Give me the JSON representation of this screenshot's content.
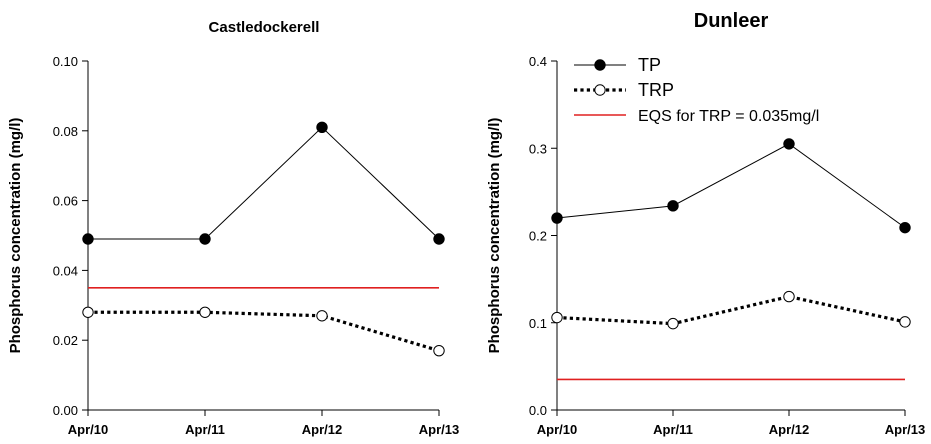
{
  "chart_data": [
    {
      "type": "line",
      "title": "Castledockerell",
      "xlabel": "",
      "ylabel": "Phosphorus concentration (mg/l)",
      "categories": [
        "Apr/10",
        "Apr/11",
        "Apr/12",
        "Apr/13"
      ],
      "ylim": [
        0,
        0.1
      ],
      "yticks": [
        "0.00",
        "0.02",
        "0.04",
        "0.06",
        "0.08",
        "0.10"
      ],
      "series": [
        {
          "name": "TP",
          "style": "solid-filled",
          "color": "#000000",
          "values": [
            0.049,
            0.049,
            0.081,
            0.049
          ]
        },
        {
          "name": "TRP",
          "style": "dotted-open",
          "color": "#000000",
          "values": [
            0.028,
            0.028,
            0.027,
            0.017
          ]
        },
        {
          "name": "EQS for TRP = 0.035mg/l",
          "style": "reference",
          "color": "#e02020",
          "values": [
            0.035,
            0.035,
            0.035,
            0.035
          ]
        }
      ],
      "legend": false,
      "grid": false
    },
    {
      "type": "line",
      "title": "Dunleer",
      "xlabel": "",
      "ylabel": "Phosphorus concentration (mg/l)",
      "categories": [
        "Apr/10",
        "Apr/11",
        "Apr/12",
        "Apr/13"
      ],
      "ylim": [
        0,
        0.4
      ],
      "yticks": [
        "0.0",
        "0.1",
        "0.2",
        "0.3",
        "0.4"
      ],
      "series": [
        {
          "name": "TP",
          "style": "solid-filled",
          "color": "#000000",
          "values": [
            0.22,
            0.234,
            0.305,
            0.209
          ]
        },
        {
          "name": "TRP",
          "style": "dotted-open",
          "color": "#000000",
          "values": [
            0.106,
            0.099,
            0.13,
            0.101
          ]
        },
        {
          "name": "EQS for TRP = 0.035mg/l",
          "style": "reference",
          "color": "#e02020",
          "values": [
            0.035,
            0.035,
            0.035,
            0.035
          ]
        }
      ],
      "legend": "top-left",
      "grid": false
    }
  ]
}
